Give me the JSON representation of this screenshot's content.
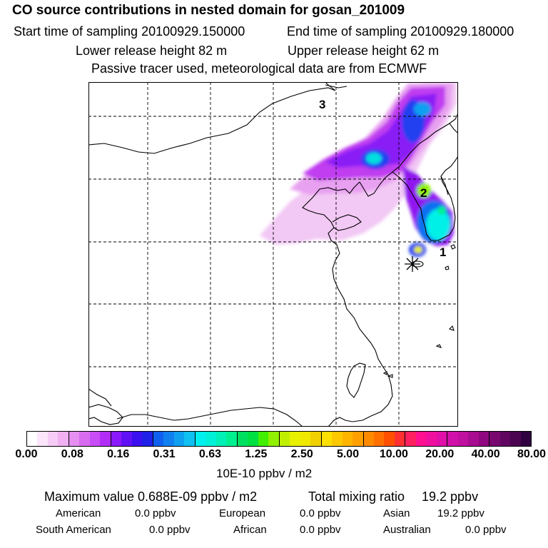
{
  "header": {
    "title": "CO  source contributions in nested domain for gosan_201009",
    "start": "Start time of sampling 20100929.150000",
    "end": "End time of sampling 20100929.180000",
    "lower": "Lower release height   82 m",
    "upper": "Upper release height   62 m",
    "note": "Passive tracer used, meteorological data are from ECMWF"
  },
  "map": {
    "labels": [
      "1",
      "2",
      "3"
    ],
    "receptor_icon": "asterisk-receptor-icon"
  },
  "colorbar": {
    "unit": "10E-10 ppbv / m2",
    "ticks": [
      "0.00",
      "0.08",
      "0.16",
      "0.31",
      "0.63",
      "1.25",
      "2.50",
      "5.00",
      "10.00",
      "20.00",
      "40.00",
      "80.00"
    ],
    "colors": [
      "#ffffff",
      "#fbe6fb",
      "#f6ccf6",
      "#f0b0f2",
      "#e58ff0",
      "#d86cf0",
      "#c84cf5",
      "#b22cf8",
      "#8a18f8",
      "#6010f5",
      "#3a10f0",
      "#2020e8",
      "#1060f0",
      "#1080f0",
      "#10a0f0",
      "#10c0f0",
      "#00f0f0",
      "#00f0d8",
      "#00f0b8",
      "#00f090",
      "#00e060",
      "#00e040",
      "#40f000",
      "#90f000",
      "#c0f000",
      "#e8f000",
      "#f0e800",
      "#f0d000",
      "#ffe000",
      "#ffc800",
      "#ffb400",
      "#ffa000",
      "#ff8a00",
      "#ff7000",
      "#ff5000",
      "#ff3030",
      "#ff2060",
      "#ff1090",
      "#f010a0",
      "#e010a8",
      "#d010a8",
      "#c010a0",
      "#a80c90",
      "#900880",
      "#780870",
      "#600660",
      "#4a0450",
      "#300240"
    ]
  },
  "footer": {
    "max": "Maximum value  0.688E-09 ppbv / m2",
    "total_label": "Total mixing ratio",
    "total_value": "19.2 ppbv",
    "american_label": "American",
    "american_value": "0.0 ppbv",
    "european_label": "European",
    "european_value": "0.0 ppbv",
    "asian_label": "Asian",
    "asian_value": "19.2 ppbv",
    "south_american_label": "South American",
    "south_american_value": "0.0 ppbv",
    "african_label": "African",
    "african_value": "0.0 ppbv",
    "australian_label": "Australian",
    "australian_value": "0.0 ppbv"
  }
}
